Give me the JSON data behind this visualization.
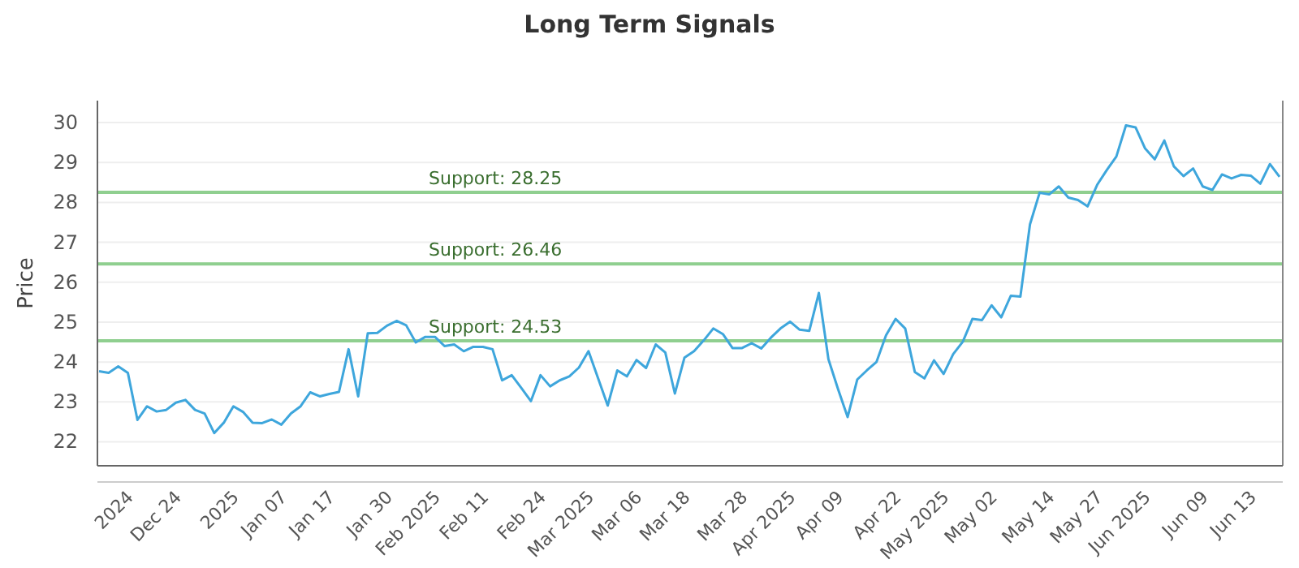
{
  "chart_data": {
    "type": "line",
    "title": "Long Term Signals",
    "ylabel": "Price",
    "categories": [
      null,
      null,
      null,
      "2024",
      null,
      null,
      null,
      null,
      "Dec 24",
      null,
      null,
      null,
      null,
      null,
      "2025",
      null,
      null,
      null,
      null,
      "Jan 07",
      null,
      null,
      null,
      null,
      "Jan 17",
      null,
      null,
      null,
      null,
      null,
      "Jan 30",
      null,
      null,
      null,
      null,
      "Feb 2025",
      null,
      null,
      null,
      null,
      "Feb 11",
      null,
      null,
      null,
      null,
      null,
      "Feb 24",
      null,
      null,
      null,
      null,
      "Mar 2025",
      null,
      null,
      null,
      null,
      "Mar 06",
      null,
      null,
      null,
      null,
      "Mar 18",
      null,
      null,
      null,
      null,
      null,
      "Mar 28",
      null,
      null,
      null,
      null,
      "Apr 2025",
      null,
      null,
      null,
      null,
      "Apr 09",
      null,
      null,
      null,
      null,
      null,
      "Apr 22",
      null,
      null,
      null,
      null,
      "May 2025",
      null,
      null,
      null,
      null,
      "May 02",
      null,
      null,
      null,
      null,
      null,
      "May 14",
      null,
      null,
      null,
      null,
      "May 27",
      null,
      null,
      null,
      null,
      "Jun 2025",
      null,
      null,
      null,
      null,
      null,
      "Jun 09",
      null,
      null,
      null,
      null,
      "Jun 13",
      null,
      null,
      null
    ],
    "series": [
      {
        "color": "#3ea6dc",
        "values": [
          23.77,
          23.73,
          23.89,
          23.73,
          22.55,
          22.89,
          22.76,
          22.8,
          22.98,
          23.05,
          22.8,
          22.71,
          22.22,
          22.48,
          22.89,
          22.75,
          22.48,
          22.47,
          22.56,
          22.43,
          22.71,
          22.89,
          23.24,
          23.14,
          23.2,
          23.25,
          24.32,
          23.14,
          24.72,
          24.73,
          24.91,
          25.03,
          24.92,
          24.49,
          24.63,
          24.63,
          24.4,
          24.44,
          24.27,
          24.38,
          24.38,
          24.32,
          23.54,
          23.67,
          23.35,
          23.02,
          23.67,
          23.39,
          23.54,
          23.64,
          23.86,
          24.27,
          23.59,
          22.91,
          23.79,
          23.64,
          24.05,
          23.85,
          24.44,
          24.24,
          23.21,
          24.11,
          24.27,
          24.54,
          24.84,
          24.7,
          24.35,
          24.35,
          24.47,
          24.34,
          24.61,
          24.84,
          25.01,
          24.81,
          24.78,
          25.73,
          24.07,
          23.32,
          22.62,
          23.56,
          23.79,
          24.0,
          24.67,
          25.08,
          24.84,
          23.75,
          23.59,
          24.04,
          23.7,
          24.2,
          24.51,
          25.08,
          25.05,
          25.42,
          25.12,
          25.66,
          25.64,
          27.45,
          28.24,
          28.2,
          28.4,
          28.12,
          28.06,
          27.9,
          28.44,
          28.81,
          29.15,
          29.93,
          29.88,
          29.35,
          29.08,
          29.55,
          28.9,
          28.66,
          28.85,
          28.4,
          28.31,
          28.7,
          28.6,
          28.69,
          28.67,
          28.47,
          28.96,
          28.64
        ]
      }
    ],
    "ylim": [
      21.4,
      30.55
    ],
    "yticks": [
      22,
      23,
      24,
      25,
      26,
      27,
      28,
      29,
      30
    ],
    "grid": "y",
    "ref_lines": [
      {
        "axis": "y",
        "value": 28.25,
        "label": "Support: 28.25",
        "color": "#8fcf8f"
      },
      {
        "axis": "y",
        "value": 26.46,
        "label": "Support: 26.46",
        "color": "#8fcf8f"
      },
      {
        "axis": "y",
        "value": 24.53,
        "label": "Support: 24.53",
        "color": "#8fcf8f"
      }
    ]
  }
}
